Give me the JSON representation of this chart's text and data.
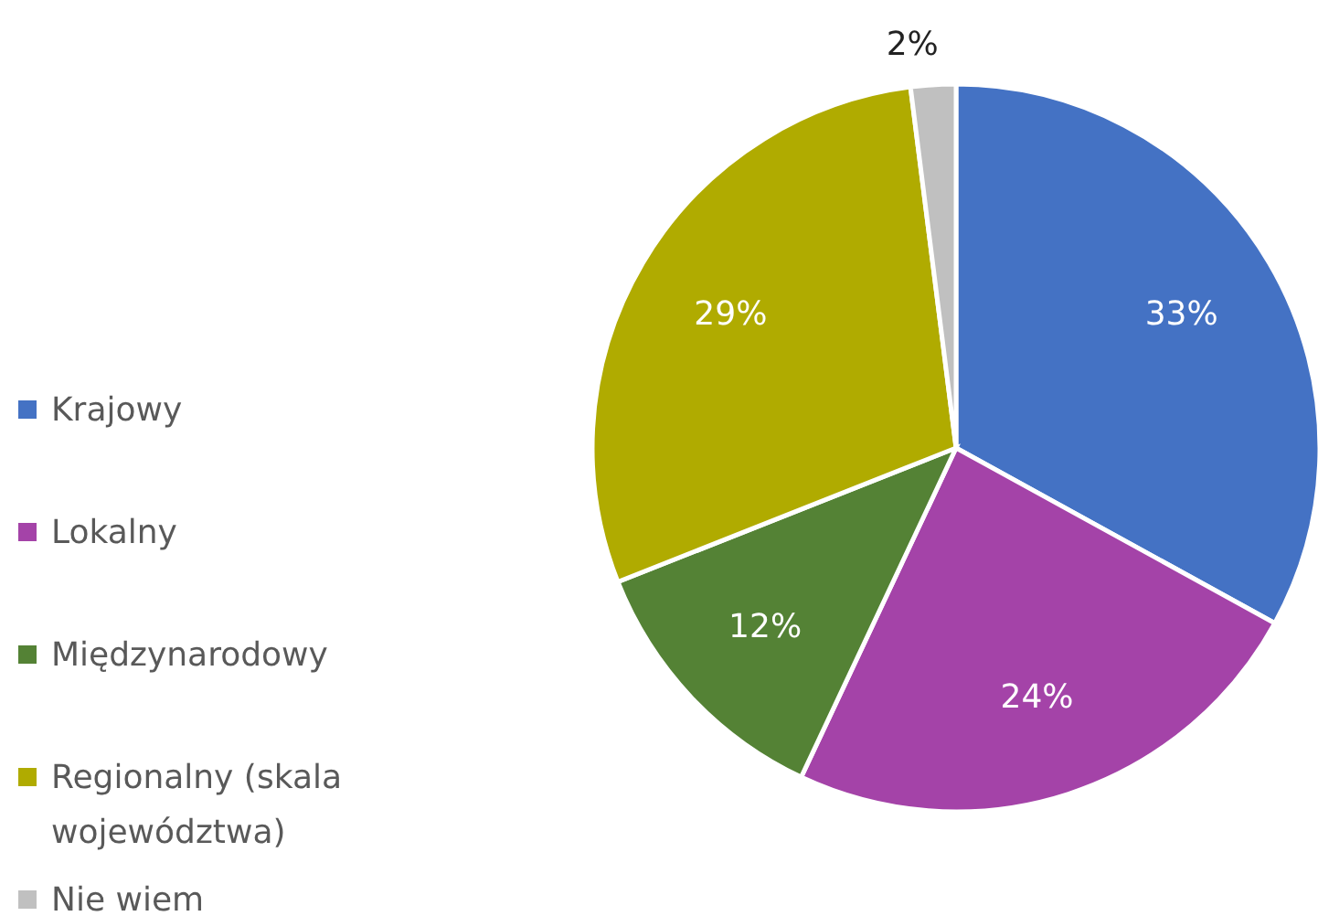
{
  "chart_data": {
    "type": "pie",
    "categories": [
      "Krajowy",
      "Lokalny",
      "Międzynarodowy",
      "Regionalny (skala województwa)",
      "Nie wiem"
    ],
    "values": [
      33,
      24,
      12,
      29,
      2
    ],
    "colors": [
      "#4472c4",
      "#a443a8",
      "#548235",
      "#b0ab00",
      "#c0c0c0"
    ],
    "value_labels": [
      "33%",
      "24%",
      "12%",
      "29%",
      "2%"
    ],
    "legend": "left"
  }
}
